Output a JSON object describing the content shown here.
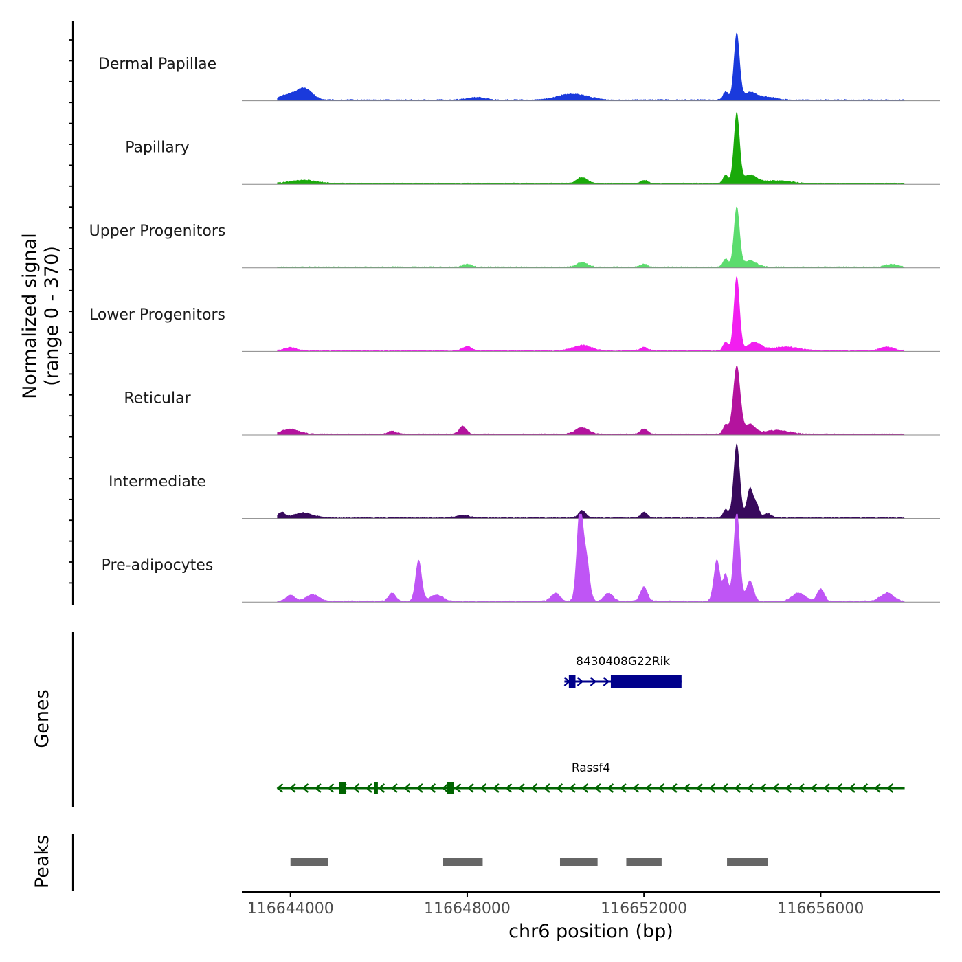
{
  "chart_data": {
    "type": "area",
    "title": "",
    "xlabel": "chr6 position (bp)",
    "ylabel": "Normalized signal",
    "ylabel_range": "(range 0 - 370)",
    "ylim": [
      0,
      370
    ],
    "xlim": [
      116642900,
      116658700
    ],
    "x_ticks": [
      116644000,
      116648000,
      116652000,
      116656000
    ],
    "x_tick_labels": [
      "116644000",
      "116648000",
      "116652000",
      "116656000"
    ],
    "signal_x_range": [
      116643700,
      116657900
    ],
    "background_level": 8,
    "series": [
      {
        "name": "Dermal Papillae",
        "color": "#1a3adc",
        "peaks": [
          {
            "x": 116644300,
            "height": 58,
            "width": 180
          },
          {
            "x": 116643900,
            "height": 22,
            "width": 150
          },
          {
            "x": 116648200,
            "height": 12,
            "width": 200
          },
          {
            "x": 116650200,
            "height": 20,
            "width": 250
          },
          {
            "x": 116650600,
            "height": 18,
            "width": 250
          },
          {
            "x": 116654100,
            "height": 320,
            "width": 65
          },
          {
            "x": 116653850,
            "height": 40,
            "width": 60
          },
          {
            "x": 116654400,
            "height": 35,
            "width": 150
          },
          {
            "x": 116654800,
            "height": 14,
            "width": 200
          }
        ]
      },
      {
        "name": "Papillary",
        "color": "#1aaa0a",
        "peaks": [
          {
            "x": 116644300,
            "height": 16,
            "width": 300
          },
          {
            "x": 116650600,
            "height": 30,
            "width": 120
          },
          {
            "x": 116652000,
            "height": 16,
            "width": 80
          },
          {
            "x": 116654100,
            "height": 340,
            "width": 65
          },
          {
            "x": 116653850,
            "height": 40,
            "width": 60
          },
          {
            "x": 116654400,
            "height": 40,
            "width": 150
          },
          {
            "x": 116655000,
            "height": 14,
            "width": 300
          }
        ]
      },
      {
        "name": "Upper Progenitors",
        "color": "#5cdc6e",
        "peaks": [
          {
            "x": 116648000,
            "height": 14,
            "width": 100
          },
          {
            "x": 116650600,
            "height": 22,
            "width": 120
          },
          {
            "x": 116652000,
            "height": 14,
            "width": 80
          },
          {
            "x": 116654100,
            "height": 290,
            "width": 65
          },
          {
            "x": 116653850,
            "height": 40,
            "width": 60
          },
          {
            "x": 116654400,
            "height": 30,
            "width": 150
          },
          {
            "x": 116657600,
            "height": 14,
            "width": 150
          }
        ]
      },
      {
        "name": "Lower Progenitors",
        "color": "#f21ef0",
        "peaks": [
          {
            "x": 116644000,
            "height": 14,
            "width": 150
          },
          {
            "x": 116648000,
            "height": 20,
            "width": 100
          },
          {
            "x": 116650600,
            "height": 26,
            "width": 200
          },
          {
            "x": 116652000,
            "height": 16,
            "width": 80
          },
          {
            "x": 116654100,
            "height": 360,
            "width": 65
          },
          {
            "x": 116653850,
            "height": 40,
            "width": 60
          },
          {
            "x": 116654500,
            "height": 40,
            "width": 150
          },
          {
            "x": 116655200,
            "height": 18,
            "width": 300
          },
          {
            "x": 116657500,
            "height": 18,
            "width": 150
          }
        ]
      },
      {
        "name": "Reticular",
        "color": "#b4139e",
        "peaks": [
          {
            "x": 116644000,
            "height": 24,
            "width": 200
          },
          {
            "x": 116646300,
            "height": 14,
            "width": 100
          },
          {
            "x": 116647900,
            "height": 40,
            "width": 80
          },
          {
            "x": 116650600,
            "height": 32,
            "width": 150
          },
          {
            "x": 116652000,
            "height": 26,
            "width": 80
          },
          {
            "x": 116654100,
            "height": 330,
            "width": 80
          },
          {
            "x": 116653850,
            "height": 45,
            "width": 60
          },
          {
            "x": 116654400,
            "height": 45,
            "width": 120
          },
          {
            "x": 116655000,
            "height": 18,
            "width": 300
          }
        ]
      },
      {
        "name": "Intermediate",
        "color": "#380a5c",
        "peaks": [
          {
            "x": 116643800,
            "height": 26,
            "width": 80
          },
          {
            "x": 116644300,
            "height": 24,
            "width": 200
          },
          {
            "x": 116647900,
            "height": 12,
            "width": 150
          },
          {
            "x": 116650600,
            "height": 36,
            "width": 80
          },
          {
            "x": 116652000,
            "height": 28,
            "width": 70
          },
          {
            "x": 116654100,
            "height": 360,
            "width": 70
          },
          {
            "x": 116653850,
            "height": 40,
            "width": 60
          },
          {
            "x": 116654400,
            "height": 145,
            "width": 70
          },
          {
            "x": 116654550,
            "height": 60,
            "width": 60
          },
          {
            "x": 116654800,
            "height": 20,
            "width": 80
          }
        ]
      },
      {
        "name": "Pre-adipocytes",
        "color": "#bf55f5",
        "peaks": [
          {
            "x": 116644000,
            "height": 30,
            "width": 100
          },
          {
            "x": 116644500,
            "height": 32,
            "width": 150
          },
          {
            "x": 116646300,
            "height": 40,
            "width": 80
          },
          {
            "x": 116646900,
            "height": 200,
            "width": 70
          },
          {
            "x": 116647300,
            "height": 30,
            "width": 150
          },
          {
            "x": 116650000,
            "height": 40,
            "width": 100
          },
          {
            "x": 116650550,
            "height": 450,
            "width": 70
          },
          {
            "x": 116650700,
            "height": 200,
            "width": 70
          },
          {
            "x": 116651200,
            "height": 40,
            "width": 100
          },
          {
            "x": 116652000,
            "height": 70,
            "width": 80
          },
          {
            "x": 116653650,
            "height": 200,
            "width": 70
          },
          {
            "x": 116653850,
            "height": 130,
            "width": 60
          },
          {
            "x": 116654100,
            "height": 440,
            "width": 70
          },
          {
            "x": 116654400,
            "height": 100,
            "width": 80
          },
          {
            "x": 116655500,
            "height": 40,
            "width": 150
          },
          {
            "x": 116656000,
            "height": 60,
            "width": 80
          },
          {
            "x": 116657500,
            "height": 40,
            "width": 150
          }
        ]
      }
    ],
    "genes_track": {
      "label": "Genes",
      "genes": [
        {
          "name": "8430408G22Rik",
          "strand": "+",
          "color": "#00008b",
          "start": 116650200,
          "end": 116652850,
          "exons": [
            [
              116650300,
              116650450
            ],
            [
              116651250,
              116652850
            ]
          ]
        },
        {
          "name": "Rassf4",
          "strand": "-",
          "color": "#006400",
          "start": 116643700,
          "end": 116657900,
          "exons": [
            [
              116645100,
              116645250
            ],
            [
              116645900,
              116645950
            ],
            [
              116647550,
              116647700
            ]
          ]
        }
      ]
    },
    "peaks_track": {
      "label": "Peaks",
      "color": "#666666",
      "regions": [
        [
          116644000,
          116644850
        ],
        [
          116647450,
          116648350
        ],
        [
          116650100,
          116650950
        ],
        [
          116651600,
          116652400
        ],
        [
          116653880,
          116654800
        ]
      ]
    }
  }
}
